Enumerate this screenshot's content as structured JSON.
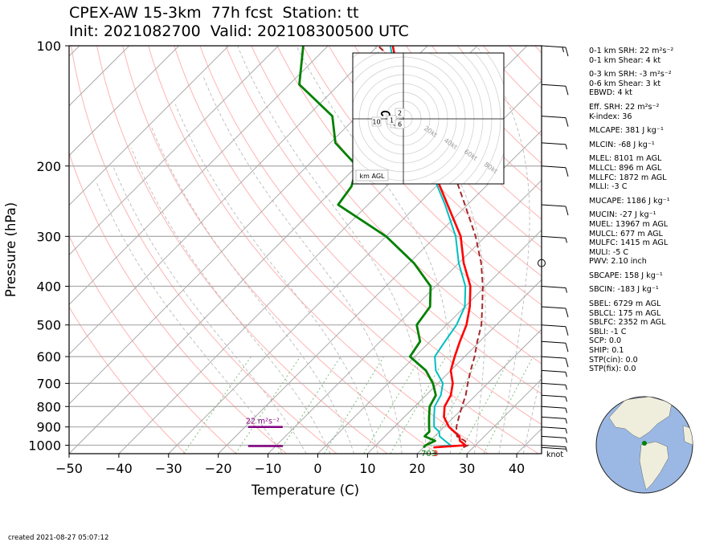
{
  "title_line1": "CPEX-AW 15-3km  77h fcst  Station: tt",
  "title_line2": "Init: 2021082700  Valid: 202108300500 UTC",
  "created": "created 2021-08-27 05:07:12",
  "colors": {
    "temperature": "#ff0000",
    "dewpoint": "#008000",
    "virtual_temperature": "#00bfc0",
    "parcel": "#a52a2a",
    "srh_bar": "#800080",
    "dry_adiabat": "#ff9999",
    "moist_adiabat": "#bbbbbb",
    "mixing_ratio": "#7fbf7f",
    "globe_ocean": "#9ab8e3",
    "globe_land": "#efeedd"
  },
  "stats": [
    {
      "text": "0-1 km SRH: 22 m²s⁻²",
      "gap": false
    },
    {
      "text": "0-1 km Shear: 4 kt",
      "gap": false
    },
    {
      "text": "0-3 km SRH: -3 m²s⁻²",
      "gap": true
    },
    {
      "text": "0-6 km Shear: 3 kt",
      "gap": false
    },
    {
      "text": "EBWD: 4 kt",
      "gap": false
    },
    {
      "text": "Eff. SRH: 22 m²s⁻²",
      "gap": true
    },
    {
      "text": "K-index: 36",
      "gap": false
    },
    {
      "text": "MLCAPE: 381 J kg⁻¹",
      "gap": true
    },
    {
      "text": "MLCIN: -68 J kg⁻¹",
      "gap": true
    },
    {
      "text": "MLEL: 8101 m AGL",
      "gap": true
    },
    {
      "text": "MLLCL: 896 m AGL",
      "gap": false
    },
    {
      "text": "MLLFC: 1872 m AGL",
      "gap": false
    },
    {
      "text": "MLLI: -3 C",
      "gap": false
    },
    {
      "text": "MUCAPE: 1186 J kg⁻¹",
      "gap": true
    },
    {
      "text": "MUCIN: -27 J kg⁻¹",
      "gap": true
    },
    {
      "text": "MUEL: 13967 m AGL",
      "gap": false
    },
    {
      "text": "MULCL: 677 m AGL",
      "gap": false
    },
    {
      "text": "MULFC: 1415 m AGL",
      "gap": false
    },
    {
      "text": "MULI: -5 C",
      "gap": false
    },
    {
      "text": "PWV: 2.10 inch",
      "gap": false
    },
    {
      "text": "SBCAPE: 158 J kg⁻¹",
      "gap": true
    },
    {
      "text": "SBCIN: -183 J kg⁻¹",
      "gap": true
    },
    {
      "text": "SBEL: 6729 m AGL",
      "gap": true
    },
    {
      "text": "SBLCL: 175 m AGL",
      "gap": false
    },
    {
      "text": "SBLFC: 2352 m AGL",
      "gap": false
    },
    {
      "text": "SBLI: -1 C",
      "gap": false
    },
    {
      "text": "SCP: 0.0",
      "gap": false
    },
    {
      "text": "SHIP: 0.1",
      "gap": false
    },
    {
      "text": "STP(cin): 0.0",
      "gap": false
    },
    {
      "text": "STP(fix): 0.0",
      "gap": false
    }
  ],
  "chart_data": [
    {
      "type": "line",
      "chart_kind": "skew-T log-p diagram",
      "xlabel": "Temperature (C)",
      "ylabel": "Pressure (hPa)",
      "x_ticks": [
        "−50",
        "−40",
        "−30",
        "−20",
        "−10",
        "0",
        "10",
        "20",
        "30",
        "40"
      ],
      "x_tick_values": [
        -50,
        -40,
        -30,
        -20,
        -10,
        0,
        10,
        20,
        30,
        40
      ],
      "xlim": [
        -50,
        45
      ],
      "y_ticks": [
        "100",
        "200",
        "300",
        "400",
        "500",
        "600",
        "700",
        "800",
        "900",
        "1000"
      ],
      "y_tick_values": [
        100,
        200,
        300,
        400,
        500,
        600,
        700,
        800,
        900,
        1000
      ],
      "ylim": [
        1050,
        100
      ],
      "yscale": "log",
      "skew_degrees": 45,
      "series": [
        {
          "key": "temperature",
          "points": [
            [
              1013,
              22
            ],
            [
              1000,
              28
            ],
            [
              975,
              26
            ],
            [
              950,
              25
            ],
            [
              925,
              23
            ],
            [
              900,
              21
            ],
            [
              850,
              18
            ],
            [
              800,
              16
            ],
            [
              750,
              15
            ],
            [
              700,
              13
            ],
            [
              650,
              10
            ],
            [
              600,
              8
            ],
            [
              550,
              6
            ],
            [
              500,
              4
            ],
            [
              450,
              1
            ],
            [
              400,
              -3
            ],
            [
              350,
              -9
            ],
            [
              300,
              -15
            ],
            [
              250,
              -24
            ],
            [
              200,
              -35
            ],
            [
              150,
              -48
            ],
            [
              125,
              -57
            ],
            [
              110,
              -63
            ],
            [
              100,
              -67
            ]
          ]
        },
        {
          "key": "virtual_temperature",
          "points": [
            [
              1013,
              22
            ],
            [
              1000,
              25
            ],
            [
              975,
              23
            ],
            [
              950,
              21
            ],
            [
              925,
              20
            ],
            [
              900,
              18
            ],
            [
              850,
              16
            ],
            [
              800,
              14
            ],
            [
              750,
              13
            ],
            [
              700,
              11
            ],
            [
              650,
              7
            ],
            [
              600,
              4
            ],
            [
              550,
              3
            ],
            [
              500,
              2
            ],
            [
              450,
              0
            ],
            [
              400,
              -4
            ],
            [
              350,
              -10
            ],
            [
              300,
              -16
            ],
            [
              250,
              -24.5
            ],
            [
              200,
              -35.5
            ],
            [
              150,
              -48.5
            ],
            [
              125,
              -57.5
            ],
            [
              110,
              -63.5
            ],
            [
              100,
              -67.5
            ]
          ]
        },
        {
          "key": "dewpoint",
          "points": [
            [
              1013,
              20
            ],
            [
              1000,
              20
            ],
            [
              975,
              21
            ],
            [
              950,
              18
            ],
            [
              925,
              18
            ],
            [
              900,
              17
            ],
            [
              850,
              15
            ],
            [
              800,
              13
            ],
            [
              750,
              12
            ],
            [
              700,
              9
            ],
            [
              650,
              5
            ],
            [
              600,
              -1
            ],
            [
              550,
              -2
            ],
            [
              500,
              -6
            ],
            [
              450,
              -7
            ],
            [
              400,
              -11
            ],
            [
              350,
              -19
            ],
            [
              300,
              -30
            ],
            [
              250,
              -46
            ],
            [
              225,
              -47
            ],
            [
              200,
              -50
            ],
            [
              175,
              -59
            ],
            [
              150,
              -65
            ],
            [
              125,
              -78
            ],
            [
              110,
              -82
            ],
            [
              100,
              -85
            ]
          ]
        },
        {
          "key": "parcel",
          "dashed": true,
          "points": [
            [
              1013,
              28
            ],
            [
              1000,
              28.5
            ],
            [
              975,
              27
            ],
            [
              950,
              24.5
            ],
            [
              925,
              23.5
            ],
            [
              900,
              22.5
            ],
            [
              850,
              21
            ],
            [
              800,
              19.5
            ],
            [
              750,
              18
            ],
            [
              700,
              16
            ],
            [
              650,
              14
            ],
            [
              600,
              12
            ],
            [
              550,
              9.5
            ],
            [
              500,
              7
            ],
            [
              450,
              3.5
            ],
            [
              400,
              -0.5
            ],
            [
              350,
              -5.5
            ],
            [
              300,
              -12
            ],
            [
              250,
              -20.5
            ],
            [
              200,
              -31
            ],
            [
              150,
              -46
            ],
            [
              125,
              -56
            ],
            [
              110,
              -63
            ],
            [
              100,
              -70
            ]
          ]
        }
      ],
      "srh_bar_label": "22 m²s⁻²",
      "srh_bar_pressures": [
        1000,
        900
      ],
      "surface_label_left": "703",
      "surface_label_right": "3",
      "wind_barb_unit": "knot",
      "wind_barbs": [
        {
          "p": 1013,
          "kt": 2
        },
        {
          "p": 1000,
          "kt": 3
        },
        {
          "p": 950,
          "kt": 3
        },
        {
          "p": 900,
          "kt": 4
        },
        {
          "p": 850,
          "kt": 4
        },
        {
          "p": 800,
          "kt": 5
        },
        {
          "p": 750,
          "kt": 5
        },
        {
          "p": 700,
          "kt": 6
        },
        {
          "p": 650,
          "kt": 7
        },
        {
          "p": 600,
          "kt": 8
        },
        {
          "p": 550,
          "kt": 9
        },
        {
          "p": 500,
          "kt": 10
        },
        {
          "p": 450,
          "kt": 8
        },
        {
          "p": 400,
          "kt": 5
        },
        {
          "p": 350,
          "kt": 0
        },
        {
          "p": 300,
          "kt": 7
        },
        {
          "p": 250,
          "kt": 10
        },
        {
          "p": 200,
          "kt": 8
        },
        {
          "p": 175,
          "kt": 7
        },
        {
          "p": 150,
          "kt": 9
        },
        {
          "p": 125,
          "kt": 12
        },
        {
          "p": 100,
          "kt": 14
        }
      ]
    },
    {
      "type": "line",
      "chart_kind": "hodograph",
      "axis_note": "km AGL",
      "ring_labels": [
        "20kt",
        "40kt",
        "60kt",
        "80kt"
      ],
      "height_labels": [
        "10",
        "2",
        "3",
        "1",
        "6"
      ]
    }
  ]
}
